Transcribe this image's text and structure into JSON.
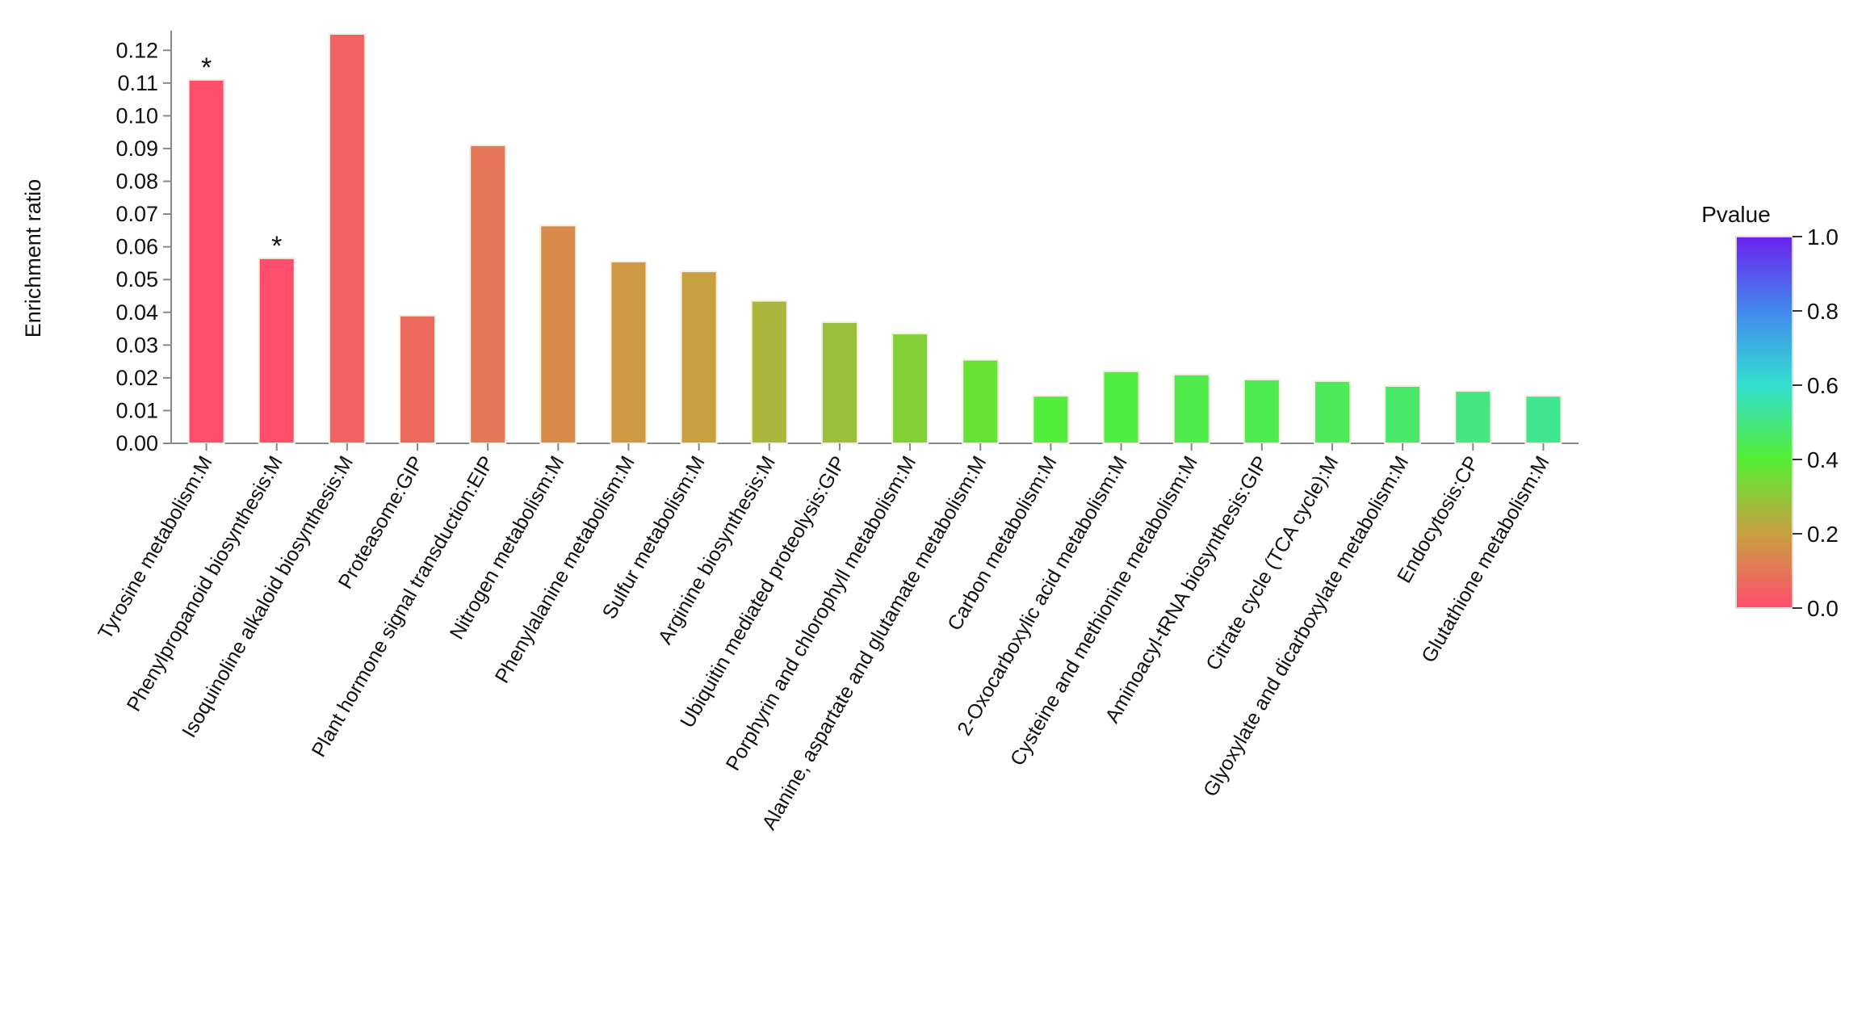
{
  "chart_data": {
    "type": "bar",
    "title": "",
    "xlabel": "",
    "ylabel": "Enrichment ratio",
    "ylim": [
      0,
      0.125
    ],
    "yticks": [
      "0.00",
      "0.01",
      "0.02",
      "0.03",
      "0.04",
      "0.05",
      "0.06",
      "0.07",
      "0.08",
      "0.09",
      "0.10",
      "0.11",
      "0.12"
    ],
    "grid": false,
    "categories": [
      "Tyrosine metabolism:M",
      "Phenylpropanoid biosynthesis:M",
      "Isoquinoline alkaloid biosynthesis:M",
      "Proteasome:GIP",
      "Plant hormone signal transduction:EIP",
      "Nitrogen metabolism:M",
      "Phenylalanine metabolism:M",
      "Sulfur metabolism:M",
      "Arginine biosynthesis:M",
      "Ubiquitin mediated proteolysis:GIP",
      "Porphyrin and chlorophyll metabolism:M",
      "Alanine, aspartate and glutamate metabolism:M",
      "Carbon metabolism:M",
      "2-Oxocarboxylic acid metabolism:M",
      "Cysteine and methionine metabolism:M",
      "Aminoacyl-tRNA biosynthesis:GIP",
      "Citrate cycle (TCA cycle):M",
      "Glyoxylate and dicarboxylate metabolism:M",
      "Endocytosis:CP",
      "Glutathione metabolism:M"
    ],
    "values": [
      0.111,
      0.0565,
      0.125,
      0.039,
      0.091,
      0.0665,
      0.0555,
      0.0525,
      0.0435,
      0.037,
      0.0335,
      0.0255,
      0.0145,
      0.022,
      0.021,
      0.0195,
      0.019,
      0.0175,
      0.016,
      0.0145
    ],
    "pvalues": [
      0.0,
      0.0,
      0.05,
      0.07,
      0.1,
      0.15,
      0.18,
      0.2,
      0.25,
      0.28,
      0.32,
      0.37,
      0.41,
      0.42,
      0.43,
      0.44,
      0.45,
      0.47,
      0.5,
      0.52
    ],
    "annotations": [
      "*",
      "*",
      "",
      "",
      "",
      "",
      "",
      "",
      "",
      "",
      "",
      "",
      "",
      "",
      "",
      "",
      "",
      "",
      "",
      ""
    ],
    "colorbar": {
      "title": "Pvalue",
      "range": [
        0.0,
        1.0
      ],
      "ticks": [
        "0.0",
        "0.2",
        "0.4",
        "0.6",
        "0.8",
        "1.0"
      ],
      "colors": [
        "#ff4d6d",
        "#c8a040",
        "#55ee33",
        "#33e0d0",
        "#4488ee",
        "#6a22ee"
      ]
    }
  }
}
